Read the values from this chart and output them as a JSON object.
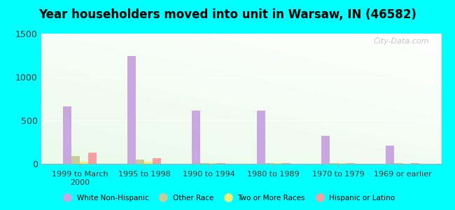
{
  "title": "Year householders moved into unit in Warsaw, IN (46582)",
  "categories": [
    "1999 to March\n2000",
    "1995 to 1998",
    "1990 to 1994",
    "1980 to 1989",
    "1970 to 1979",
    "1969 or earlier"
  ],
  "white_non_hispanic": [
    660,
    1240,
    610,
    610,
    320,
    210
  ],
  "other_race": [
    90,
    45,
    12,
    12,
    8,
    5
  ],
  "two_or_more_races": [
    22,
    28,
    10,
    10,
    5,
    3
  ],
  "hispanic_or_latino": [
    130,
    65,
    12,
    12,
    8,
    5
  ],
  "bar_width": 0.13,
  "ylim": [
    0,
    1500
  ],
  "yticks": [
    0,
    500,
    1000,
    1500
  ],
  "color_white": "#c9a8e0",
  "color_other": "#c8cc99",
  "color_two": "#f0f077",
  "color_hispanic": "#f5a0a0",
  "bg_outer": "#00ffff",
  "watermark": "City-Data.com",
  "legend_labels": [
    "White Non-Hispanic",
    "Other Race",
    "Two or More Races",
    "Hispanic or Latino"
  ]
}
